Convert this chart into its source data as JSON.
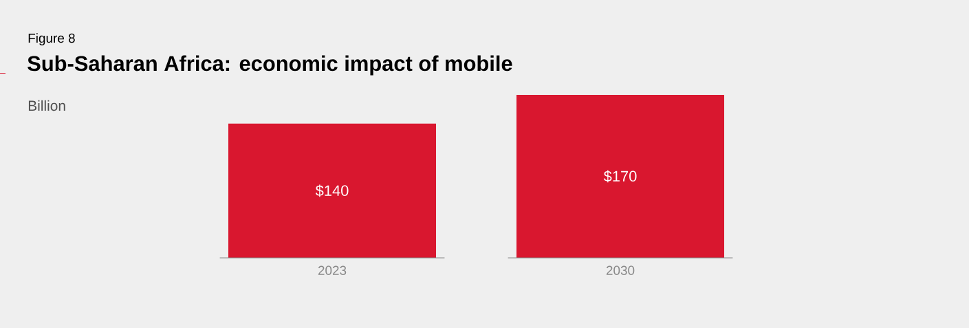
{
  "chart_data": {
    "type": "bar",
    "title": "Sub-Saharan Africa: economic impact of mobile",
    "annotations": [
      "Figure 8",
      "Billion"
    ],
    "categories": [
      "2023",
      "2030"
    ],
    "values": [
      140,
      170
    ],
    "value_labels": [
      "$140",
      "$170"
    ],
    "color": "#d9172f"
  }
}
